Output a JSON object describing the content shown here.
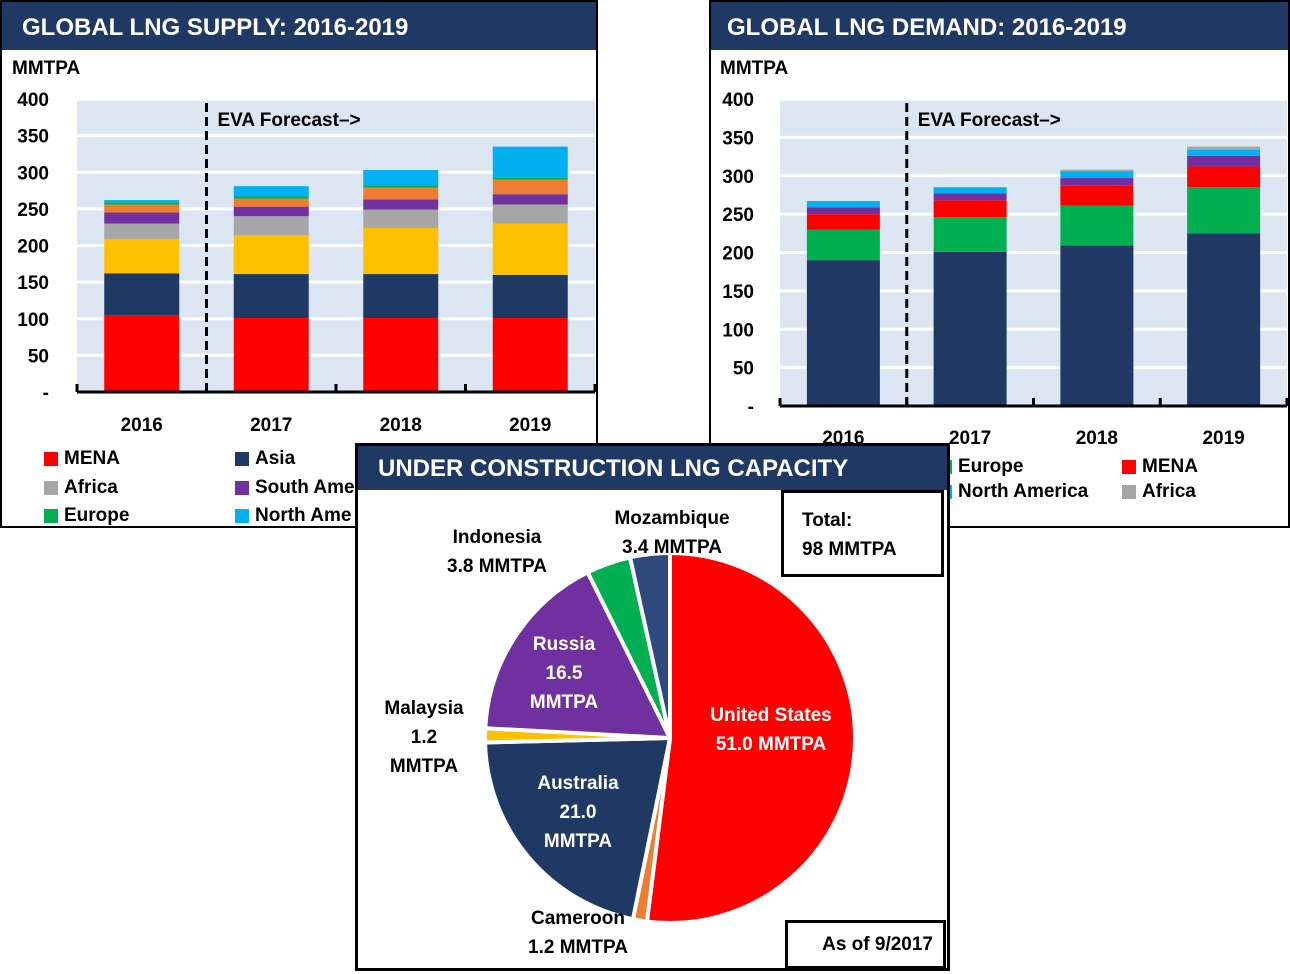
{
  "chart_data": [
    {
      "type": "bar",
      "stacked": true,
      "title": "GLOBAL LNG SUPPLY: 2016-2019",
      "ylabel": "MMTPA",
      "categories": [
        "2016",
        "2017",
        "2018",
        "2019"
      ],
      "ylim": [
        0,
        400
      ],
      "yticks": [
        0,
        50,
        100,
        150,
        200,
        250,
        300,
        350,
        400
      ],
      "ytick_labels": [
        "-",
        "50",
        "100",
        "150",
        "200",
        "250",
        "300",
        "350",
        "400"
      ],
      "grid": true,
      "annotation": "EVA Forecast–>",
      "series": [
        {
          "name": "MENA",
          "color": "#ff0000",
          "values": [
            105,
            101,
            101,
            101
          ]
        },
        {
          "name": "Asia",
          "color": "#1f3864",
          "values": [
            57,
            60,
            60,
            59
          ]
        },
        {
          "color": "#ffc000",
          "values": [
            47,
            53,
            63,
            70
          ]
        },
        {
          "name": "Africa",
          "color": "#a6a6a6",
          "values": [
            21,
            26,
            25,
            26
          ]
        },
        {
          "name": "South America",
          "color": "#7030a0",
          "values": [
            15,
            13,
            14,
            14
          ]
        },
        {
          "color": "#ed7d31",
          "values": [
            11,
            11,
            16,
            20
          ]
        },
        {
          "name": "Europe",
          "color": "#00b050",
          "values": [
            3,
            3,
            3,
            3
          ]
        },
        {
          "name": "North America",
          "color": "#00b0f0",
          "values": [
            3,
            14,
            21,
            42
          ]
        }
      ],
      "legend_visible": [
        [
          {
            "name": "MENA",
            "color": "#ff0000"
          },
          {
            "name": "Asia",
            "color": "#1f3864"
          }
        ],
        [
          {
            "name": "Africa",
            "color": "#a6a6a6"
          },
          {
            "name": "South Ame",
            "color": "#7030a0"
          }
        ],
        [
          {
            "name": "Europe",
            "color": "#00b050"
          },
          {
            "name": "North Ame",
            "color": "#00b0f0"
          }
        ]
      ]
    },
    {
      "type": "bar",
      "stacked": true,
      "title": "GLOBAL LNG DEMAND: 2016-2019",
      "ylabel": "MMTPA",
      "categories": [
        "2016",
        "2017",
        "2018",
        "2019"
      ],
      "ylim": [
        0,
        400
      ],
      "yticks": [
        0,
        50,
        100,
        150,
        200,
        250,
        300,
        350,
        400
      ],
      "ytick_labels": [
        "-",
        "50",
        "100",
        "150",
        "200",
        "250",
        "300",
        "350",
        "400"
      ],
      "grid": true,
      "annotation": "EVA Forecast–>",
      "series": [
        {
          "color": "#1f3864",
          "values": [
            190,
            201,
            209,
            225
          ]
        },
        {
          "name": "Europe",
          "color": "#00b050",
          "values": [
            40,
            45,
            52,
            60
          ]
        },
        {
          "name": "MENA",
          "color": "#ff0000",
          "values": [
            20,
            22,
            26,
            27
          ]
        },
        {
          "color": "#7030a0",
          "values": [
            9,
            9,
            10,
            14
          ]
        },
        {
          "name": "North America",
          "color": "#00b0f0",
          "values": [
            8,
            8,
            9,
            8
          ]
        },
        {
          "name": "Africa",
          "color": "#a6a6a6",
          "values": [
            0,
            0,
            2,
            4
          ]
        }
      ],
      "legend_visible": [
        [
          {
            "name": "Europe",
            "color": "#00b050"
          },
          {
            "name": "MENA",
            "color": "#ff0000"
          }
        ],
        [
          {
            "name": "North America",
            "color": "#00b0f0"
          },
          {
            "name": "Africa",
            "color": "#a6a6a6"
          }
        ]
      ]
    },
    {
      "type": "pie",
      "title": "UNDER CONSTRUCTION LNG CAPACITY",
      "unit": "MMTPA",
      "slices": [
        {
          "name": "United States",
          "value": 51.0,
          "color": "#ff0000",
          "label": [
            "United States",
            "51.0 MMTPA"
          ]
        },
        {
          "name": "Cameroon",
          "value": 1.2,
          "color": "#ed7d31",
          "label": [
            "Cameroon",
            "1.2 MMTPA"
          ]
        },
        {
          "name": "Australia",
          "value": 21.0,
          "color": "#1f3864",
          "label": [
            "Australia",
            "21.0",
            "MMTPA"
          ]
        },
        {
          "name": "Malaysia",
          "value": 1.2,
          "color": "#ffc000",
          "label": [
            "Malaysia",
            "1.2",
            "MMTPA"
          ]
        },
        {
          "name": "Russia",
          "value": 16.5,
          "color": "#7030a0",
          "label": [
            "Russia",
            "16.5",
            "MMTPA"
          ]
        },
        {
          "name": "Indonesia",
          "value": 3.8,
          "color": "#00b050",
          "label": [
            "Indonesia",
            "3.8 MMTPA"
          ]
        },
        {
          "name": "Mozambique",
          "value": 3.4,
          "color": "#2e4a7d",
          "label": [
            "Mozambique",
            "3.4 MMTPA"
          ]
        }
      ],
      "total_box": [
        "Total:",
        "98 MMTPA"
      ],
      "date_box": "As of 9/2017"
    }
  ],
  "colors": {
    "header": "#1f3864",
    "plot_bg": "#dce6f2"
  }
}
